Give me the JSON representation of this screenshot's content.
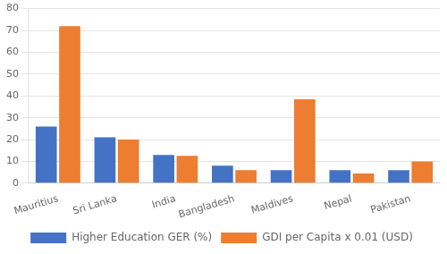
{
  "chart_data": {
    "type": "bar",
    "categories": [
      "Mauritius",
      "Sri Lanka",
      "India",
      "Bangladesh",
      "Maldives",
      "Nepal",
      "Pakistan"
    ],
    "series": [
      {
        "name": "Higher Education GER (%)",
        "color": "#4472C4",
        "values": [
          26,
          21,
          13,
          8,
          6,
          6,
          6
        ]
      },
      {
        "name": "GDI per Capita x 0.01 (USD)",
        "color": "#ED7D31",
        "values": [
          72,
          20,
          12.5,
          6,
          38.5,
          4.5,
          10
        ]
      }
    ],
    "ylim": [
      0,
      80
    ],
    "yticks": [
      0,
      10,
      20,
      30,
      40,
      50,
      60,
      70,
      80
    ],
    "grid": true,
    "legend": "bottom"
  }
}
